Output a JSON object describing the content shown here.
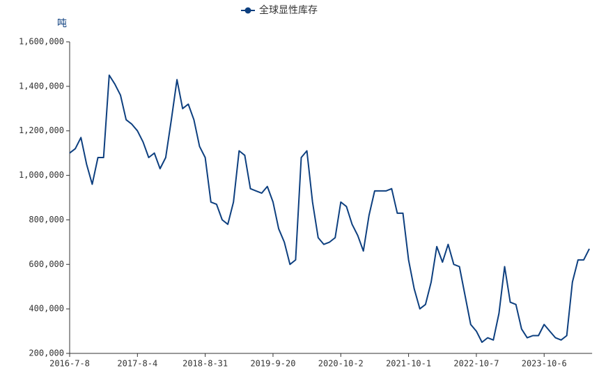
{
  "chart_data": {
    "type": "line",
    "y_axis_label": "吨",
    "categories": [
      "2016-7-8",
      null,
      null,
      null,
      null,
      null,
      null,
      null,
      null,
      null,
      null,
      null,
      "2017-8-4",
      null,
      null,
      null,
      null,
      null,
      null,
      null,
      null,
      null,
      null,
      null,
      "2018-8-31",
      null,
      null,
      null,
      null,
      null,
      null,
      null,
      null,
      null,
      null,
      null,
      "2019-9-20",
      null,
      null,
      null,
      null,
      null,
      null,
      null,
      null,
      null,
      null,
      null,
      "2020-10-2",
      null,
      null,
      null,
      null,
      null,
      null,
      null,
      null,
      null,
      null,
      null,
      "2021-10-1",
      null,
      null,
      null,
      null,
      null,
      null,
      null,
      null,
      null,
      null,
      null,
      "2022-10-7",
      null,
      null,
      null,
      null,
      null,
      null,
      null,
      null,
      null,
      null,
      null,
      "2023-10-6",
      null,
      null,
      null,
      null,
      null,
      null,
      null,
      null
    ],
    "series": [
      {
        "name": "全球显性库存",
        "color": "#0d3f7f",
        "values": [
          1100000,
          1120000,
          1170000,
          1050000,
          960000,
          1080000,
          1080000,
          1450000,
          1410000,
          1360000,
          1250000,
          1230000,
          1200000,
          1150000,
          1080000,
          1100000,
          1030000,
          1080000,
          1250000,
          1430000,
          1300000,
          1320000,
          1250000,
          1130000,
          1080000,
          880000,
          870000,
          800000,
          780000,
          880000,
          1110000,
          1090000,
          940000,
          930000,
          920000,
          950000,
          880000,
          760000,
          700000,
          600000,
          620000,
          1080000,
          1110000,
          880000,
          720000,
          690000,
          700000,
          720000,
          880000,
          860000,
          780000,
          730000,
          660000,
          820000,
          930000,
          930000,
          930000,
          940000,
          830000,
          830000,
          620000,
          490000,
          400000,
          420000,
          520000,
          680000,
          610000,
          690000,
          600000,
          590000,
          460000,
          330000,
          300000,
          250000,
          270000,
          260000,
          380000,
          590000,
          430000,
          420000,
          310000,
          270000,
          280000,
          280000,
          330000,
          300000,
          270000,
          260000,
          280000,
          520000,
          620000,
          620000,
          670000
        ]
      }
    ],
    "ylim": [
      200000,
      1600000
    ],
    "yticks": [
      {
        "value": 200000,
        "label": "200,000"
      },
      {
        "value": 400000,
        "label": "400,000"
      },
      {
        "value": 600000,
        "label": "600,000"
      },
      {
        "value": 800000,
        "label": "800,000"
      },
      {
        "value": 1000000,
        "label": "1,000,000"
      },
      {
        "value": 1200000,
        "label": "1,200,000"
      },
      {
        "value": 1400000,
        "label": "1,400,000"
      },
      {
        "value": 1600000,
        "label": "1,600,000"
      }
    ],
    "grid": false
  }
}
